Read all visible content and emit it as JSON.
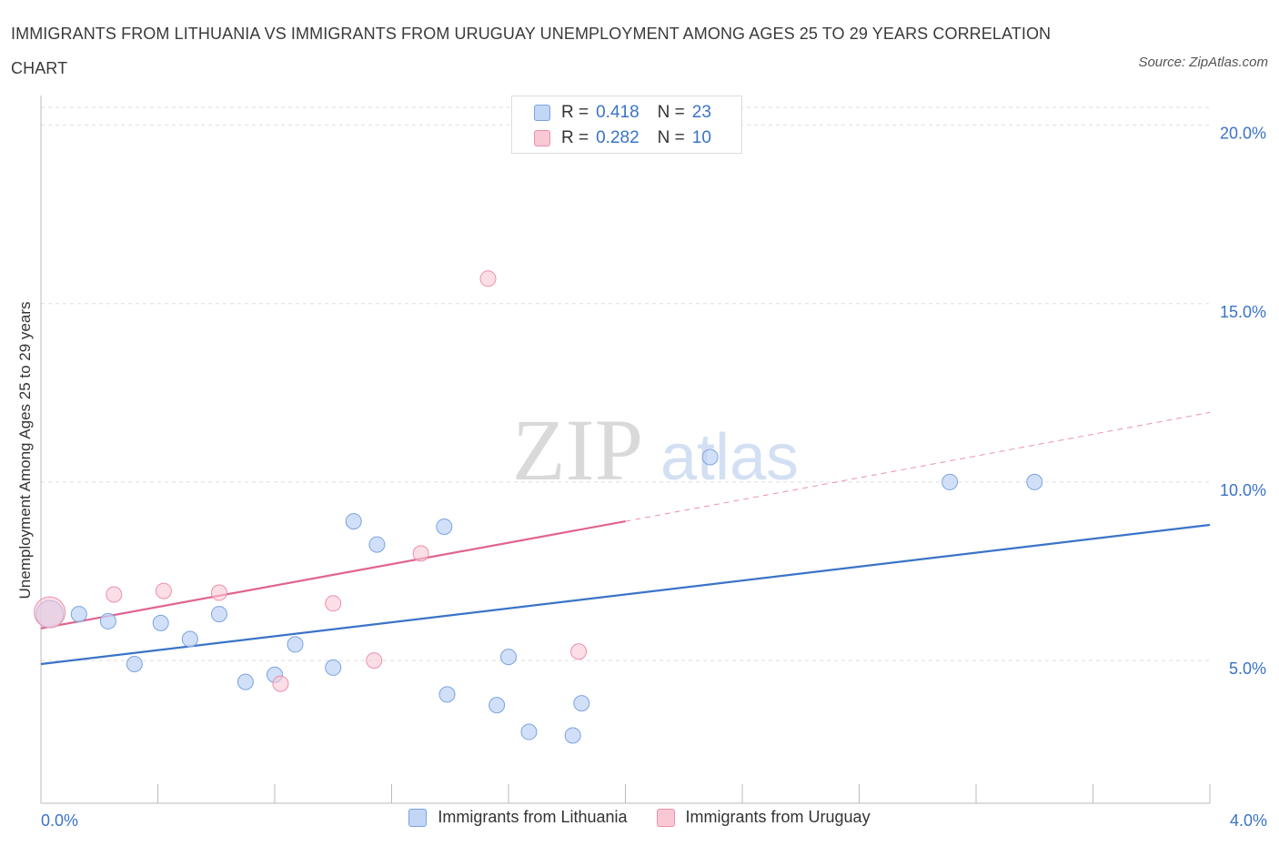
{
  "title": "IMMIGRANTS FROM LITHUANIA VS IMMIGRANTS FROM URUGUAY UNEMPLOYMENT AMONG AGES 25 TO 29 YEARS CORRELATION CHART",
  "source": "Source: ZipAtlas.com",
  "watermark": {
    "zip": "ZIP",
    "atlas": "atlas"
  },
  "colors": {
    "lithuania_fill": "#c2d6f5",
    "lithuania_stroke": "#7aa3e0",
    "lithuania_line": "#3a73c8",
    "uruguay_fill": "#f8c8d5",
    "uruguay_stroke": "#ec8fab",
    "uruguay_line": "#e0648e",
    "grid": "#dddddd",
    "axis_text": "#3a73c8"
  },
  "legend": {
    "rows": [
      {
        "r_label": "R =",
        "r_value": "0.418",
        "n_label": "N =",
        "n_value": "23"
      },
      {
        "r_label": "R =",
        "r_value": "0.282",
        "n_label": "N =",
        "n_value": "10"
      }
    ]
  },
  "chart_data": {
    "type": "scatter",
    "title": "IMMIGRANTS FROM LITHUANIA VS IMMIGRANTS FROM URUGUAY UNEMPLOYMENT AMONG AGES 25 TO 29 YEARS CORRELATION CHART",
    "xlabel": "",
    "ylabel": "Unemployment Among Ages 25 to 29 years",
    "xlim": [
      0,
      4.0
    ],
    "ylim": [
      1.0,
      20.5
    ],
    "x_tick_labels": [
      "0.0%",
      "4.0%"
    ],
    "y_ticks": [
      5,
      10,
      15,
      20
    ],
    "y_tick_labels": [
      "5.0%",
      "10.0%",
      "15.0%",
      "20.0%"
    ],
    "grid": true,
    "series": [
      {
        "name": "Immigrants from Lithuania",
        "points": [
          {
            "x": 0.03,
            "y": 6.3,
            "big": true
          },
          {
            "x": 0.13,
            "y": 6.3
          },
          {
            "x": 0.23,
            "y": 6.1
          },
          {
            "x": 0.32,
            "y": 4.9
          },
          {
            "x": 0.41,
            "y": 6.05
          },
          {
            "x": 0.51,
            "y": 5.6
          },
          {
            "x": 0.61,
            "y": 6.3
          },
          {
            "x": 0.7,
            "y": 4.4
          },
          {
            "x": 0.8,
            "y": 4.6
          },
          {
            "x": 0.87,
            "y": 5.45
          },
          {
            "x": 1.0,
            "y": 4.8
          },
          {
            "x": 1.07,
            "y": 8.9
          },
          {
            "x": 1.15,
            "y": 8.25
          },
          {
            "x": 1.38,
            "y": 8.75
          },
          {
            "x": 1.39,
            "y": 4.05
          },
          {
            "x": 1.56,
            "y": 3.75
          },
          {
            "x": 1.6,
            "y": 5.1
          },
          {
            "x": 1.67,
            "y": 3.0
          },
          {
            "x": 1.82,
            "y": 2.9
          },
          {
            "x": 1.85,
            "y": 3.8
          },
          {
            "x": 2.29,
            "y": 10.7
          },
          {
            "x": 3.11,
            "y": 10.0
          },
          {
            "x": 3.4,
            "y": 10.0
          }
        ],
        "trend": {
          "x": [
            0,
            4.0
          ],
          "y": [
            4.9,
            8.8
          ]
        }
      },
      {
        "name": "Immigrants from Uruguay",
        "points": [
          {
            "x": 0.03,
            "y": 6.35,
            "big": true
          },
          {
            "x": 0.25,
            "y": 6.85
          },
          {
            "x": 0.42,
            "y": 6.95
          },
          {
            "x": 0.61,
            "y": 6.9
          },
          {
            "x": 0.82,
            "y": 4.35
          },
          {
            "x": 1.0,
            "y": 6.6
          },
          {
            "x": 1.14,
            "y": 5.0
          },
          {
            "x": 1.3,
            "y": 8.0
          },
          {
            "x": 1.53,
            "y": 15.7
          },
          {
            "x": 1.84,
            "y": 5.25
          }
        ],
        "trend": {
          "x": [
            0,
            2.0
          ],
          "y": [
            5.9,
            8.9
          ]
        },
        "trend_extension": {
          "x": [
            2.0,
            4.0
          ],
          "y": [
            8.9,
            11.95
          ]
        }
      }
    ]
  },
  "bottom_legend": [
    "Immigrants from Lithuania",
    "Immigrants from Uruguay"
  ]
}
